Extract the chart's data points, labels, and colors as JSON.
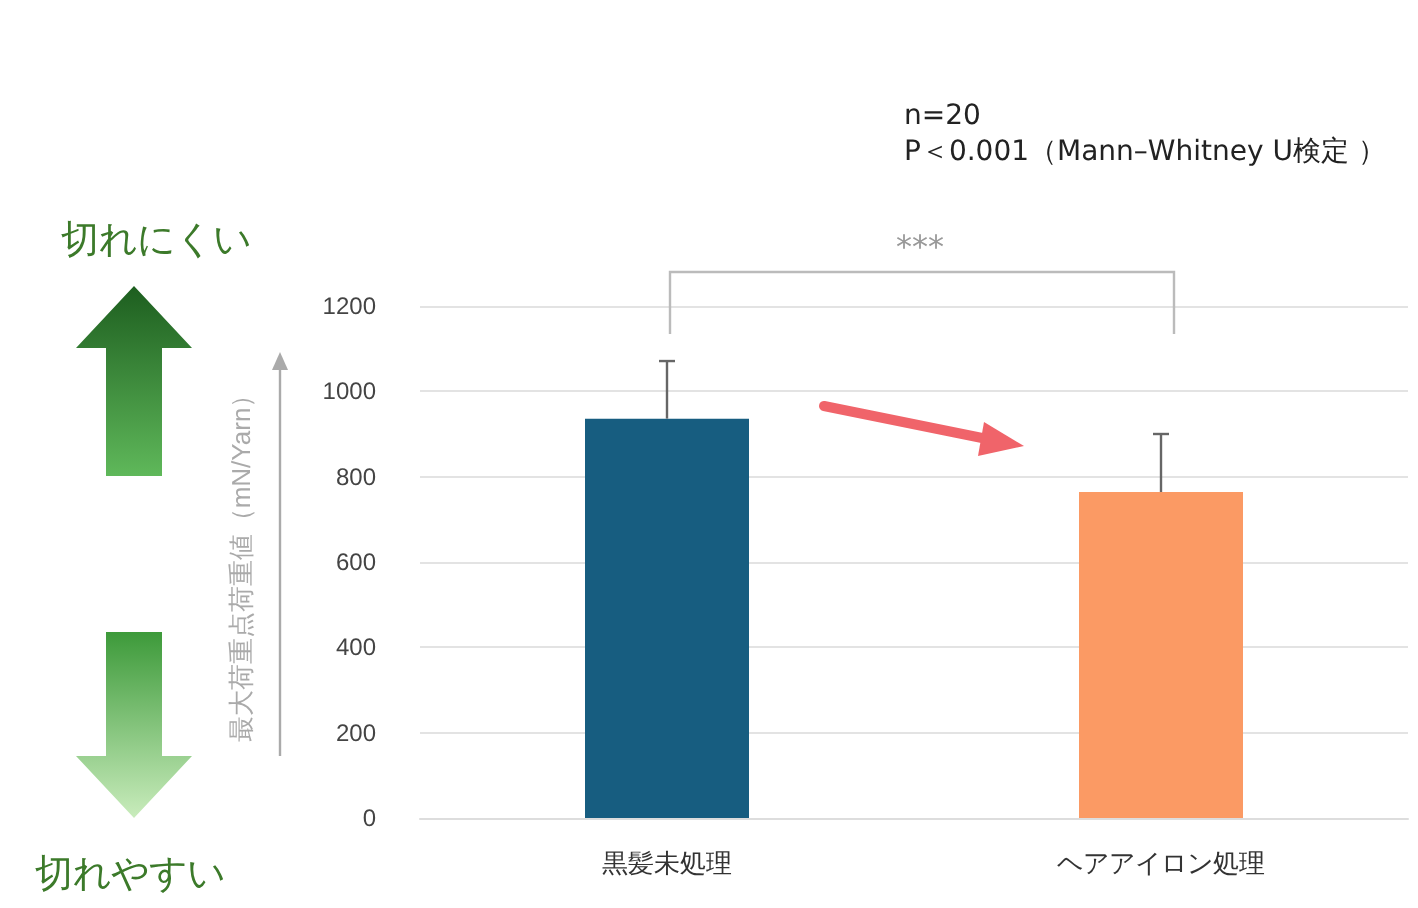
{
  "chart_data": {
    "type": "bar",
    "categories": [
      "黒髪未処理",
      "ヘアアイロン処理"
    ],
    "values": [
      936,
      764
    ],
    "colors": [
      "#175d80",
      "#fb9a64"
    ],
    "errors": [
      [
        936,
        1071
      ],
      [
        764,
        900
      ]
    ],
    "ylabel": "最大荷重点荷重値（mN/Yarn）",
    "ylim": [
      0,
      1200
    ],
    "yticks": [
      0,
      200,
      400,
      600,
      800,
      1000,
      1200
    ],
    "grid": "y",
    "annotations": [
      "n=20",
      "P＜0.001（Mann–Whitney U検定 ）",
      "***",
      "切れにくい",
      "切れやすい"
    ]
  }
}
